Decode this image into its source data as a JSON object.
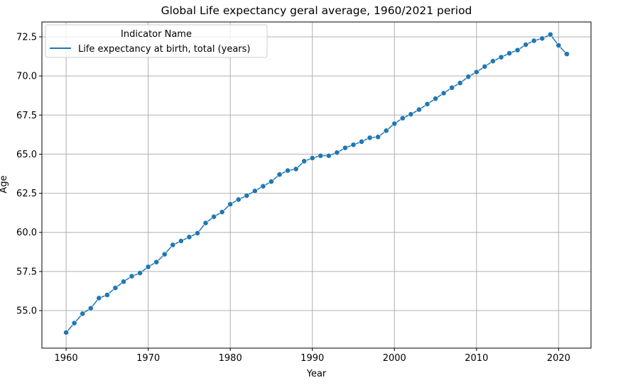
{
  "chart_data": {
    "type": "line",
    "title": "Global Life expectancy geral average, 1960/2021 period",
    "xlabel": "Year",
    "ylabel": "Age",
    "xlim": [
      1957.05,
      2023.95
    ],
    "ylim": [
      52.6,
      73.45
    ],
    "xticks": [
      1960,
      1970,
      1980,
      1990,
      2000,
      2010,
      2020
    ],
    "yticks": [
      55.0,
      57.5,
      60.0,
      62.5,
      65.0,
      67.5,
      70.0,
      72.5
    ],
    "xtick_labels": [
      "1960",
      "1970",
      "1980",
      "1990",
      "2000",
      "2010",
      "2020"
    ],
    "ytick_labels": [
      "55.0",
      "57.5",
      "60.0",
      "62.5",
      "65.0",
      "67.5",
      "70.0",
      "72.5"
    ],
    "grid": true,
    "legend": {
      "title": "Indicator Name",
      "position": "top-left"
    },
    "series": [
      {
        "name": "Life expectancy at birth, total (years)",
        "color": "#1f77b4",
        "marker": "circle",
        "x": [
          1960,
          1961,
          1962,
          1963,
          1964,
          1965,
          1966,
          1967,
          1968,
          1969,
          1970,
          1971,
          1972,
          1973,
          1974,
          1975,
          1976,
          1977,
          1978,
          1979,
          1980,
          1981,
          1982,
          1983,
          1984,
          1985,
          1986,
          1987,
          1988,
          1989,
          1990,
          1991,
          1992,
          1993,
          1994,
          1995,
          1996,
          1997,
          1998,
          1999,
          2000,
          2001,
          2002,
          2003,
          2004,
          2005,
          2006,
          2007,
          2008,
          2009,
          2010,
          2011,
          2012,
          2013,
          2014,
          2015,
          2016,
          2017,
          2018,
          2019,
          2020,
          2021
        ],
        "y": [
          53.6,
          54.2,
          54.8,
          55.15,
          55.8,
          56.0,
          56.45,
          56.85,
          57.2,
          57.4,
          57.8,
          58.1,
          58.6,
          59.2,
          59.45,
          59.7,
          59.95,
          60.6,
          61.0,
          61.3,
          61.8,
          62.1,
          62.35,
          62.65,
          62.95,
          63.25,
          63.7,
          63.95,
          64.05,
          64.55,
          64.75,
          64.9,
          64.9,
          65.1,
          65.4,
          65.6,
          65.8,
          66.05,
          66.1,
          66.5,
          66.95,
          67.3,
          67.55,
          67.85,
          68.2,
          68.55,
          68.9,
          69.25,
          69.55,
          69.95,
          70.25,
          70.6,
          70.95,
          71.2,
          71.45,
          71.65,
          72.0,
          72.25,
          72.4,
          72.65,
          71.95,
          71.4
        ]
      }
    ]
  }
}
